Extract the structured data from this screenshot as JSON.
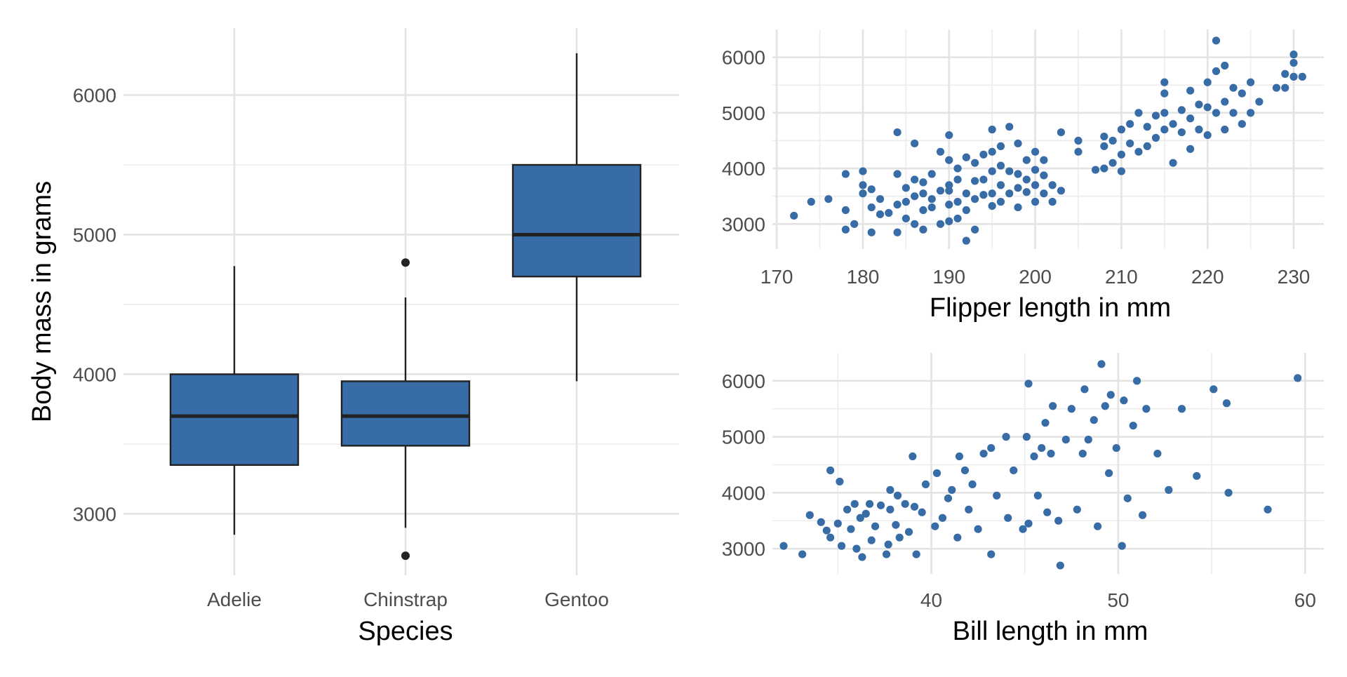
{
  "colors": {
    "fill": "#386ca6",
    "stroke": "#222222",
    "point": "#386ca6",
    "outlier": "#222222"
  },
  "chart_data": [
    {
      "id": "boxplot",
      "type": "box",
      "xlabel": "Species",
      "ylabel": "Body mass in grams",
      "categories": [
        "Adelie",
        "Chinstrap",
        "Gentoo"
      ],
      "ylim": [
        2560,
        6480
      ],
      "yticks": [
        3000,
        4000,
        5000,
        6000
      ],
      "yminor": [
        3500,
        4500,
        5500
      ],
      "tick_labels": [
        "3000",
        "4000",
        "5000",
        "6000"
      ],
      "boxes": [
        {
          "species": "Adelie",
          "min": 2850,
          "q1": 3350,
          "median": 3700,
          "q3": 4000,
          "max": 4775,
          "outliers": []
        },
        {
          "species": "Chinstrap",
          "min": 2900,
          "q1": 3488,
          "median": 3700,
          "q3": 3950,
          "max": 4550,
          "outliers": [
            2700,
            4800
          ]
        },
        {
          "species": "Gentoo",
          "min": 3950,
          "q1": 4700,
          "median": 5000,
          "q3": 5500,
          "max": 6300,
          "outliers": []
        }
      ]
    },
    {
      "id": "flipper",
      "type": "scatter",
      "xlabel": "Flipper length in mm",
      "ylabel": "",
      "xlim": [
        169.5,
        233.5
      ],
      "ylim": [
        2550,
        6500
      ],
      "xticks": [
        170,
        180,
        190,
        200,
        210,
        220,
        230
      ],
      "x_tick_labels": [
        "170",
        "180",
        "190",
        "200",
        "210",
        "220",
        "230"
      ],
      "xminor": [
        175,
        185,
        195,
        205,
        215,
        225
      ],
      "yticks": [
        3000,
        4000,
        5000,
        6000
      ],
      "y_tick_labels": [
        "3000",
        "4000",
        "5000",
        "6000"
      ],
      "yminor": [
        3500,
        4500,
        5500
      ],
      "points": [
        [
          172,
          3150
        ],
        [
          174,
          3400
        ],
        [
          176,
          3450
        ],
        [
          178,
          2900
        ],
        [
          178,
          3250
        ],
        [
          178,
          3900
        ],
        [
          179,
          3000
        ],
        [
          180,
          3550
        ],
        [
          180,
          3700
        ],
        [
          180,
          3950
        ],
        [
          181,
          2850
        ],
        [
          181,
          3300
        ],
        [
          181,
          3625
        ],
        [
          182,
          3175
        ],
        [
          182,
          3450
        ],
        [
          183,
          3200
        ],
        [
          184,
          2850
        ],
        [
          184,
          3350
        ],
        [
          184,
          3900
        ],
        [
          184,
          4650
        ],
        [
          185,
          3100
        ],
        [
          185,
          3400
        ],
        [
          185,
          3650
        ],
        [
          186,
          3000
        ],
        [
          186,
          3500
        ],
        [
          186,
          3800
        ],
        [
          186,
          4450
        ],
        [
          187,
          2900
        ],
        [
          187,
          3250
        ],
        [
          187,
          3550
        ],
        [
          187,
          3750
        ],
        [
          188,
          3300
        ],
        [
          188,
          3450
        ],
        [
          188,
          3900
        ],
        [
          189,
          3000
        ],
        [
          189,
          3600
        ],
        [
          189,
          4300
        ],
        [
          190,
          3050
        ],
        [
          190,
          3350
        ],
        [
          190,
          3600
        ],
        [
          190,
          3700
        ],
        [
          190,
          4150
        ],
        [
          190,
          4600
        ],
        [
          191,
          3100
        ],
        [
          191,
          3400
        ],
        [
          191,
          3800
        ],
        [
          191,
          4000
        ],
        [
          192,
          2700
        ],
        [
          192,
          3250
        ],
        [
          192,
          3550
        ],
        [
          192,
          4200
        ],
        [
          193,
          2900
        ],
        [
          193,
          3450
        ],
        [
          193,
          3775
        ],
        [
          193,
          4100
        ],
        [
          194,
          3525
        ],
        [
          194,
          3800
        ],
        [
          194,
          4250
        ],
        [
          195,
          3325
        ],
        [
          195,
          3550
        ],
        [
          195,
          3950
        ],
        [
          195,
          4300
        ],
        [
          195,
          4700
        ],
        [
          196,
          3400
        ],
        [
          196,
          3700
        ],
        [
          196,
          4050
        ],
        [
          196,
          4400
        ],
        [
          197,
          3550
        ],
        [
          197,
          3950
        ],
        [
          197,
          4750
        ],
        [
          198,
          3300
        ],
        [
          198,
          3650
        ],
        [
          198,
          3900
        ],
        [
          198,
          4450
        ],
        [
          199,
          3575
        ],
        [
          199,
          3800
        ],
        [
          199,
          4150
        ],
        [
          200,
          3400
        ],
        [
          200,
          3700
        ],
        [
          200,
          3975
        ],
        [
          200,
          4300
        ],
        [
          201,
          3550
        ],
        [
          201,
          3875
        ],
        [
          201,
          4150
        ],
        [
          202,
          3400
        ],
        [
          202,
          3700
        ],
        [
          203,
          3600
        ],
        [
          203,
          4650
        ],
        [
          205,
          4300
        ],
        [
          205,
          4500
        ],
        [
          207,
          3975
        ],
        [
          208,
          4000
        ],
        [
          208,
          4400
        ],
        [
          208,
          4575
        ],
        [
          209,
          4100
        ],
        [
          209,
          4500
        ],
        [
          210,
          3950
        ],
        [
          210,
          4250
        ],
        [
          210,
          4700
        ],
        [
          211,
          4450
        ],
        [
          211,
          4800
        ],
        [
          212,
          4300
        ],
        [
          212,
          5000
        ],
        [
          213,
          4400
        ],
        [
          213,
          4750
        ],
        [
          214,
          4550
        ],
        [
          214,
          4950
        ],
        [
          215,
          4700
        ],
        [
          215,
          5000
        ],
        [
          215,
          5350
        ],
        [
          215,
          5550
        ],
        [
          216,
          4100
        ],
        [
          216,
          4800
        ],
        [
          217,
          4650
        ],
        [
          217,
          5050
        ],
        [
          218,
          4350
        ],
        [
          218,
          4900
        ],
        [
          218,
          5400
        ],
        [
          219,
          4700
        ],
        [
          219,
          5150
        ],
        [
          220,
          4600
        ],
        [
          220,
          5100
        ],
        [
          220,
          5550
        ],
        [
          221,
          5000
        ],
        [
          221,
          5750
        ],
        [
          221,
          6300
        ],
        [
          222,
          4700
        ],
        [
          222,
          5200
        ],
        [
          222,
          5850
        ],
        [
          223,
          5000
        ],
        [
          223,
          5450
        ],
        [
          224,
          4800
        ],
        [
          224,
          5350
        ],
        [
          225,
          5000
        ],
        [
          225,
          5550
        ],
        [
          226,
          5200
        ],
        [
          228,
          5450
        ],
        [
          229,
          5450
        ],
        [
          229,
          5700
        ],
        [
          230,
          5650
        ],
        [
          230,
          5900
        ],
        [
          230,
          6050
        ],
        [
          231,
          5650
        ]
      ]
    },
    {
      "id": "bill",
      "type": "scatter",
      "xlabel": "Bill length in mm",
      "ylabel": "",
      "xlim": [
        31.5,
        61.0
      ],
      "ylim": [
        2550,
        6500
      ],
      "xticks": [
        40,
        50,
        60
      ],
      "x_tick_labels": [
        "40",
        "50",
        "60"
      ],
      "xminor": [
        35,
        45,
        55
      ],
      "yticks": [
        3000,
        4000,
        5000,
        6000
      ],
      "y_tick_labels": [
        "3000",
        "4000",
        "5000",
        "6000"
      ],
      "yminor": [
        3500,
        4500,
        5500
      ],
      "points": [
        [
          32.1,
          3050
        ],
        [
          33.1,
          2900
        ],
        [
          33.5,
          3600
        ],
        [
          34.1,
          3475
        ],
        [
          34.4,
          3325
        ],
        [
          34.6,
          4400
        ],
        [
          34.6,
          3200
        ],
        [
          35.0,
          3450
        ],
        [
          35.1,
          4200
        ],
        [
          35.2,
          3050
        ],
        [
          35.5,
          3700
        ],
        [
          35.7,
          3350
        ],
        [
          35.9,
          3800
        ],
        [
          36.0,
          3000
        ],
        [
          36.2,
          3550
        ],
        [
          36.3,
          2850
        ],
        [
          36.5,
          3625
        ],
        [
          36.7,
          3800
        ],
        [
          36.8,
          3150
        ],
        [
          37.0,
          3400
        ],
        [
          37.3,
          3775
        ],
        [
          37.6,
          2900
        ],
        [
          37.7,
          3075
        ],
        [
          37.8,
          3700
        ],
        [
          37.8,
          4050
        ],
        [
          38.1,
          3425
        ],
        [
          38.2,
          3950
        ],
        [
          38.3,
          3200
        ],
        [
          38.6,
          3800
        ],
        [
          38.8,
          3300
        ],
        [
          39.0,
          4650
        ],
        [
          39.1,
          3750
        ],
        [
          39.2,
          2900
        ],
        [
          39.5,
          3650
        ],
        [
          39.7,
          4150
        ],
        [
          40.2,
          3400
        ],
        [
          40.3,
          4350
        ],
        [
          40.6,
          3550
        ],
        [
          40.9,
          3900
        ],
        [
          41.1,
          4050
        ],
        [
          41.4,
          3200
        ],
        [
          41.5,
          4650
        ],
        [
          41.8,
          4400
        ],
        [
          42.0,
          3700
        ],
        [
          42.2,
          4150
        ],
        [
          42.5,
          3350
        ],
        [
          42.8,
          4700
        ],
        [
          43.2,
          2900
        ],
        [
          43.2,
          4800
        ],
        [
          43.5,
          3950
        ],
        [
          44.0,
          5000
        ],
        [
          44.1,
          3550
        ],
        [
          44.4,
          4400
        ],
        [
          44.9,
          3350
        ],
        [
          45.1,
          5000
        ],
        [
          45.2,
          5950
        ],
        [
          45.2,
          3450
        ],
        [
          45.5,
          4650
        ],
        [
          45.7,
          3950
        ],
        [
          45.9,
          4800
        ],
        [
          46.1,
          5250
        ],
        [
          46.2,
          3650
        ],
        [
          46.4,
          4700
        ],
        [
          46.5,
          5550
        ],
        [
          46.8,
          3500
        ],
        [
          46.9,
          2700
        ],
        [
          47.2,
          4950
        ],
        [
          47.5,
          5500
        ],
        [
          47.8,
          3700
        ],
        [
          48.1,
          4700
        ],
        [
          48.2,
          5850
        ],
        [
          48.4,
          4950
        ],
        [
          48.7,
          5300
        ],
        [
          48.9,
          3400
        ],
        [
          49.1,
          6300
        ],
        [
          49.3,
          5550
        ],
        [
          49.5,
          4350
        ],
        [
          49.6,
          5750
        ],
        [
          49.9,
          4800
        ],
        [
          50.2,
          3050
        ],
        [
          50.3,
          5650
        ],
        [
          50.5,
          3900
        ],
        [
          50.8,
          5200
        ],
        [
          51.0,
          6000
        ],
        [
          51.3,
          3600
        ],
        [
          51.5,
          5500
        ],
        [
          52.1,
          4700
        ],
        [
          52.7,
          4050
        ],
        [
          53.4,
          5500
        ],
        [
          54.2,
          4300
        ],
        [
          55.1,
          5850
        ],
        [
          55.8,
          5600
        ],
        [
          55.9,
          4000
        ],
        [
          58.0,
          3700
        ],
        [
          59.6,
          6050
        ]
      ]
    }
  ]
}
